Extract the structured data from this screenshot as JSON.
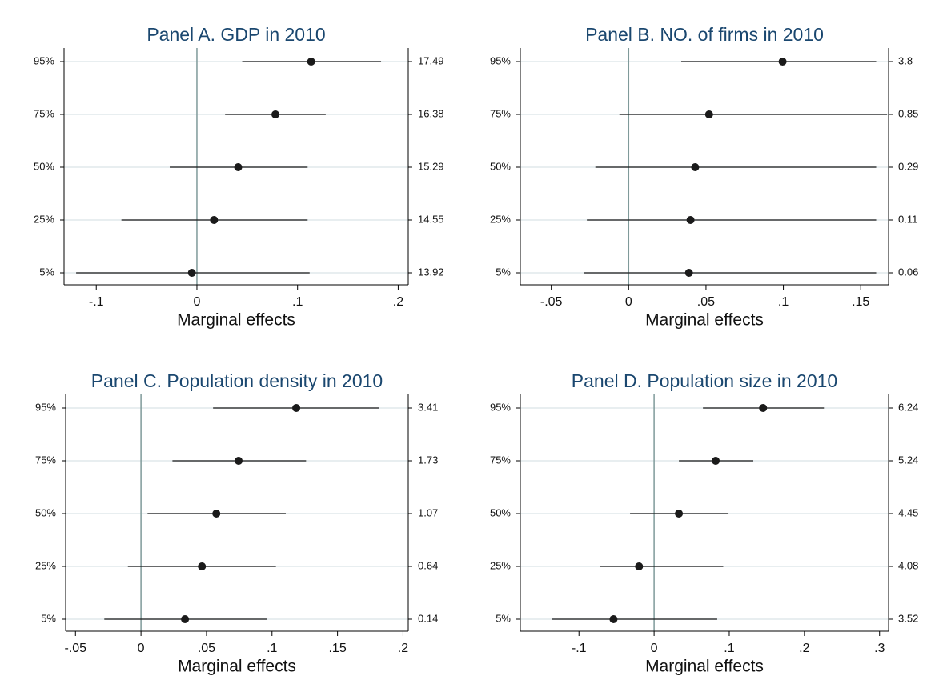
{
  "chart_data": [
    {
      "type": "forest",
      "title": "Panel A. GDP in 2010",
      "x_label": "Marginal effects",
      "categories": [
        "95%",
        "75%",
        "50%",
        "25%",
        "5%"
      ],
      "right_labels": [
        "17.49",
        "16.38",
        "15.29",
        "14.55",
        "13.92"
      ],
      "values": [
        0.1135,
        0.078,
        0.041,
        0.017,
        -0.005
      ],
      "lower": [
        0.045,
        0.028,
        -0.027,
        -0.075,
        -0.12
      ],
      "upper": [
        0.183,
        0.128,
        0.11,
        0.11,
        0.112
      ],
      "xlim": [
        -0.132,
        0.21
      ],
      "xticks": [
        {
          "value": -0.1,
          "label": "-.1"
        },
        0,
        {
          "value": 0.1,
          "label": ".1"
        },
        {
          "value": 0.2,
          "label": ".2"
        }
      ],
      "refline": 0,
      "grid": true,
      "color": "#1a1a1a",
      "title_color": "#1a476f"
    },
    {
      "type": "forest",
      "title": "Panel B. NO. of firms in 2010",
      "x_label": "Marginal effects",
      "categories": [
        "95%",
        "75%",
        "50%",
        "25%",
        "5%"
      ],
      "right_labels": [
        "3.8",
        "0.85",
        "0.29",
        "0.11",
        "0.06"
      ],
      "values": [
        0.0995,
        0.052,
        0.043,
        0.04,
        0.039
      ],
      "lower": [
        0.034,
        -0.006,
        -0.0215,
        -0.027,
        -0.029
      ],
      "upper": [
        0.16,
        0.167,
        0.16,
        0.16,
        0.16
      ],
      "xlim": [
        -0.07,
        0.168
      ],
      "xticks": [
        {
          "value": -0.05,
          "label": "-.05"
        },
        0,
        {
          "value": 0.05,
          "label": ".05"
        },
        {
          "value": 0.1,
          "label": ".1"
        },
        {
          "value": 0.15,
          "label": ".15"
        }
      ],
      "refline": 0,
      "grid": true,
      "color": "#1a1a1a",
      "title_color": "#1a476f"
    },
    {
      "type": "forest",
      "title": "Panel C. Population density in 2010",
      "x_label": "Marginal effects",
      "categories": [
        "95%",
        "75%",
        "50%",
        "25%",
        "5%"
      ],
      "right_labels": [
        "3.41",
        "1.73",
        "1.07",
        "0.64",
        "0.14"
      ],
      "values": [
        0.1185,
        0.0745,
        0.0575,
        0.0465,
        0.0336
      ],
      "lower": [
        0.055,
        0.024,
        0.005,
        -0.01,
        -0.028
      ],
      "upper": [
        0.1815,
        0.126,
        0.1105,
        0.103,
        0.096
      ],
      "xlim": [
        -0.0575,
        0.204
      ],
      "xticks": [
        {
          "value": -0.05,
          "label": "-.05"
        },
        0,
        {
          "value": 0.05,
          "label": ".05"
        },
        {
          "value": 0.1,
          "label": ".1"
        },
        {
          "value": 0.15,
          "label": ".15"
        },
        {
          "value": 0.2,
          "label": ".2"
        }
      ],
      "refline": 0,
      "grid": true,
      "color": "#1a1a1a",
      "title_color": "#1a476f"
    },
    {
      "type": "forest",
      "title": "Panel D. Population size in 2010",
      "x_label": "Marginal effects",
      "categories": [
        "95%",
        "75%",
        "50%",
        "25%",
        "5%"
      ],
      "right_labels": [
        "6.24",
        "5.24",
        "4.45",
        "4.08",
        "3.52"
      ],
      "values": [
        0.145,
        0.082,
        0.033,
        -0.02,
        -0.054
      ],
      "lower": [
        0.065,
        0.033,
        -0.032,
        -0.0715,
        -0.1355
      ],
      "upper": [
        0.226,
        0.132,
        0.099,
        0.092,
        0.084
      ],
      "xlim": [
        -0.178,
        0.312
      ],
      "xticks": [
        {
          "value": -0.1,
          "label": "-.1"
        },
        0,
        {
          "value": 0.1,
          "label": ".1"
        },
        {
          "value": 0.2,
          "label": ".2"
        },
        {
          "value": 0.3,
          "label": ".3"
        }
      ],
      "refline": 0,
      "grid": true,
      "color": "#1a1a1a",
      "title_color": "#1a476f"
    }
  ]
}
